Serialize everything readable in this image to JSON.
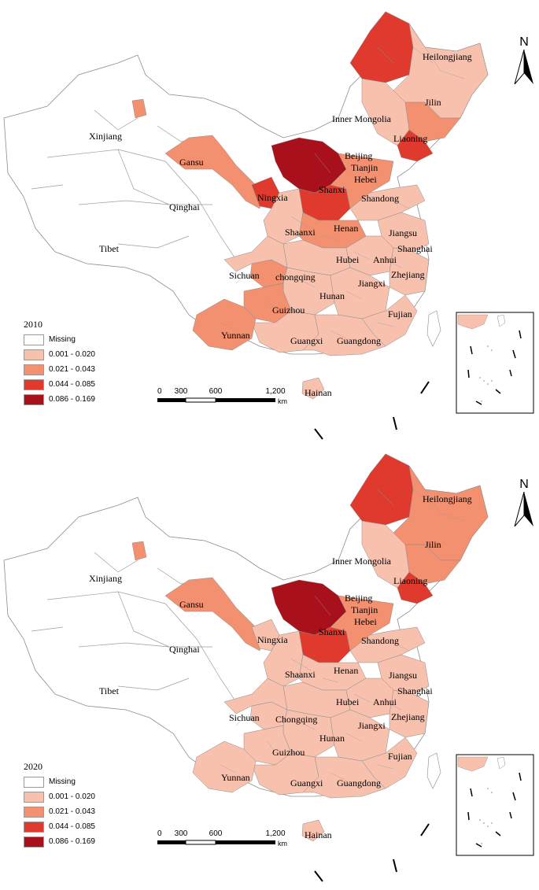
{
  "colors": {
    "missing": "#ffffff",
    "c1": "#f8c1ae",
    "c2": "#f3906f",
    "c3": "#e0392d",
    "c4": "#a8111b",
    "border": "#8c8c8c"
  },
  "legend_bins": [
    {
      "label": "Missing",
      "color": "#ffffff"
    },
    {
      "label": "0.001 - 0.020",
      "color": "#f8c1ae"
    },
    {
      "label": "0.021 - 0.043",
      "color": "#f3906f"
    },
    {
      "label": "0.044 - 0.085",
      "color": "#e0392d"
    },
    {
      "label": "0.086 - 0.169",
      "color": "#a8111b"
    }
  ],
  "scale": {
    "t0": "0",
    "t1": "300",
    "t2": "600",
    "t3": "1,200",
    "unit": "km"
  },
  "north": "N",
  "maps": [
    {
      "year": "2010",
      "labels": {
        "heilongjiang": "Heilongjiang",
        "jilin": "Jilin",
        "inner_mongolia": "Inner Mongolia",
        "liaoning": "Liaoning",
        "xinjiang": "Xinjiang",
        "gansu": "Gansu",
        "beijing": "Beijing",
        "tianjin": "Tianjin",
        "hebei": "Hebei",
        "shanxi": "Shanxi",
        "ningxia": "Ningxia",
        "qinghai": "Qinghai",
        "shandong": "Shandong",
        "henan": "Henan",
        "shaanxi": "Shaanxi",
        "jiangsu": "Jiangsu",
        "tibet": "Tibet",
        "shanghai": "Shanghai",
        "hubei": "Hubei",
        "anhui": "Anhui",
        "sichuan": "Sichuan",
        "chongqing": "chongqing",
        "zhejiang": "Zhejiang",
        "jiangxi": "Jiangxi",
        "hunan": "Hunan",
        "guizhou": "Guizhou",
        "fujian": "Fujian",
        "yunnan": "Yunnan",
        "guangxi": "Guangxi",
        "guangdong": "Guangdong",
        "hainan": "Hainan"
      },
      "fills": {
        "north_hlj": "c3",
        "hlj": "c1",
        "jilin": "c2",
        "liaoning": "c3",
        "imong_e": "c1",
        "imong_c": "c4",
        "xinjiang_dot": "c2",
        "gansu": "c2",
        "ningxia": "c3",
        "shanxi": "c3",
        "hebei": "c2",
        "shandong": "c1",
        "henan": "c2",
        "shaanxi": "c1",
        "hubei": "c1",
        "anhui": "c1",
        "jiangsu": "c1",
        "zhejiang": "c1",
        "jiangxi": "c1",
        "hunan": "c1",
        "fujian": "c1",
        "guangdong": "c1",
        "guangxi": "c1",
        "guizhou": "c2",
        "chongqing": "c2",
        "sichuan_e": "c1",
        "yunnan": "c2",
        "hainan": "c1"
      }
    },
    {
      "year": "2020",
      "labels": {
        "heilongjiang": "Heilongjiang",
        "jilin": "Jilin",
        "inner_mongolia": "Inner Mongolia",
        "liaoning": "Liaoning",
        "xinjiang": "Xinjiang",
        "gansu": "Gansu",
        "beijing": "Beijing",
        "tianjin": "Tianjin",
        "hebei": "Hebei",
        "shanxi": "Shanxi",
        "ningxia": "Ningxia",
        "qinghai": "Qinghai",
        "shandong": "Shandong",
        "henan": "Henan",
        "shaanxi": "Shaanxi",
        "jiangsu": "Jiangsu",
        "tibet": "Tibet",
        "shanghai": "Shanghai",
        "hubei": "Hubei",
        "anhui": "Anhui",
        "sichuan": "Sichuan",
        "chongqing": "Chongqing",
        "zhejiang": "Zhejiang",
        "jiangxi": "Jiangxi",
        "hunan": "Hunan",
        "guizhou": "Guizhou",
        "fujian": "Fujian",
        "yunnan": "Yunnan",
        "guangxi": "Guangxi",
        "guangdong": "Guangdong",
        "hainan": "Hainan"
      },
      "fills": {
        "north_hlj": "c3",
        "hlj": "c2",
        "jilin": "c2",
        "liaoning": "c3",
        "imong_e": "c1",
        "imong_c": "c4",
        "xinjiang_dot": "c2",
        "gansu": "c2",
        "ningxia": "c1",
        "shanxi": "c3",
        "hebei": "c2",
        "shandong": "c1",
        "henan": "c1",
        "shaanxi": "c1",
        "hubei": "c1",
        "anhui": "c1",
        "jiangsu": "c1",
        "zhejiang": "c1",
        "jiangxi": "c1",
        "hunan": "c1",
        "fujian": "c1",
        "guangdong": "c1",
        "guangxi": "c1",
        "guizhou": "c1",
        "chongqing": "c1",
        "sichuan_e": "c1",
        "yunnan": "c1",
        "hainan": "c1"
      }
    }
  ]
}
